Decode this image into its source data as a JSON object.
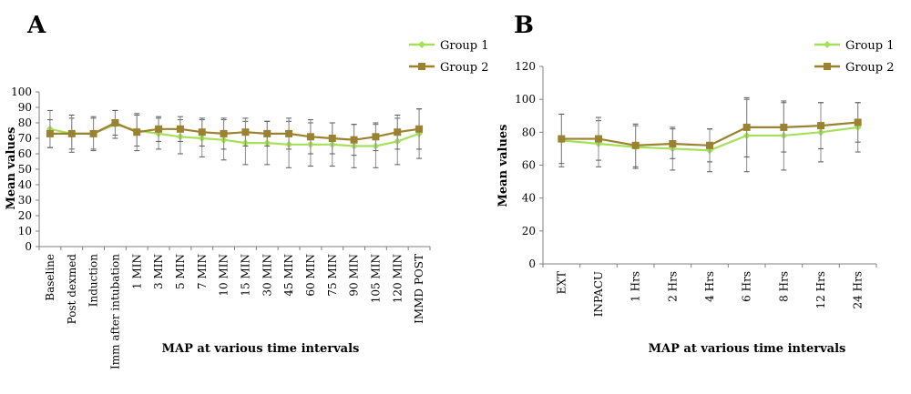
{
  "chart_data": [
    {
      "type": "line",
      "panel_label": "A",
      "xlabel": "MAP at various time intervals",
      "ylabel": "Mean values",
      "ylim": [
        0,
        100
      ],
      "yticks": [
        0,
        10,
        20,
        30,
        40,
        50,
        60,
        70,
        80,
        90,
        100
      ],
      "categories": [
        "Baseline",
        "Post dexmed",
        "Induction",
        "Imm after intubation",
        "1 MIN",
        "3 MIN",
        "5 MIN",
        "7 MIN",
        "10 MIN",
        "15 MIN",
        "30 MIN",
        "45 MIN",
        "60 MIN",
        "75 MIN",
        "90 MIN",
        "105 MIN",
        "120 MIN",
        "IMMD POST"
      ],
      "legend_position": "top-right",
      "grid": false,
      "series": [
        {
          "name": "Group 1",
          "color": "#a6e05a",
          "marker": "diamond",
          "values": [
            76,
            73,
            73,
            79,
            75,
            73,
            71,
            70,
            69,
            67,
            67,
            66,
            66,
            66,
            65,
            65,
            68,
            73
          ],
          "error": [
            12,
            10,
            10,
            9,
            10,
            10,
            11,
            12,
            13,
            14,
            14,
            15,
            14,
            14,
            14,
            14,
            15,
            16
          ]
        },
        {
          "name": "Group 2",
          "color": "#9a8231",
          "marker": "square",
          "values": [
            73,
            73,
            73,
            80,
            74,
            76,
            76,
            74,
            73,
            74,
            73,
            73,
            71,
            70,
            69,
            71,
            74,
            76
          ],
          "error": [
            9,
            12,
            11,
            8,
            12,
            8,
            8,
            9,
            10,
            9,
            8,
            10,
            11,
            10,
            10,
            9,
            11,
            13
          ]
        }
      ]
    },
    {
      "type": "line",
      "panel_label": "B",
      "xlabel": "MAP at various time intervals",
      "ylabel": "Mean values",
      "ylim": [
        0,
        120
      ],
      "yticks": [
        0,
        20,
        40,
        60,
        80,
        100,
        120
      ],
      "categories": [
        "EXT",
        "INPACU",
        "1 Hrs",
        "2 Hrs",
        "4 Hrs",
        "6 Hrs",
        "8 Hrs",
        "12 Hrs",
        "24 Hrs"
      ],
      "legend_position": "top-right",
      "grid": false,
      "series": [
        {
          "name": "Group 1",
          "color": "#a6e05a",
          "marker": "diamond",
          "values": [
            75,
            73,
            71,
            70,
            69,
            78,
            78,
            80,
            83
          ],
          "error": [
            16,
            14,
            13,
            13,
            13,
            22,
            21,
            18,
            15
          ]
        },
        {
          "name": "Group 2",
          "color": "#9a8231",
          "marker": "square",
          "values": [
            76,
            76,
            72,
            73,
            72,
            83,
            83,
            84,
            86
          ],
          "error": [
            15,
            13,
            13,
            9,
            10,
            18,
            15,
            14,
            12
          ]
        }
      ]
    }
  ]
}
